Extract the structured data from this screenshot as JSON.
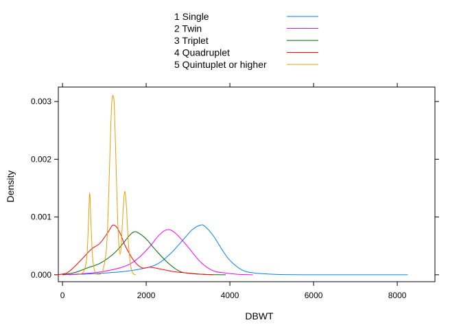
{
  "chart_data": {
    "type": "line",
    "xlabel": "DBWT",
    "ylabel": "Density",
    "xlim": [
      -100,
      8900
    ],
    "ylim": [
      -0.00012,
      0.00325
    ],
    "x_ticks": [
      {
        "value": 0,
        "label": "0"
      },
      {
        "value": 2000,
        "label": "2000"
      },
      {
        "value": 4000,
        "label": "4000"
      },
      {
        "value": 6000,
        "label": "6000"
      },
      {
        "value": 8000,
        "label": "8000"
      }
    ],
    "y_ticks": [
      {
        "value": 0,
        "label": "0.000"
      },
      {
        "value": 0.001,
        "label": "0.001"
      },
      {
        "value": 0.002,
        "label": "0.002"
      },
      {
        "value": 0.003,
        "label": "0.003"
      }
    ],
    "legend_position": "top",
    "series": [
      {
        "name": "1 Single",
        "color": "#0080ff",
        "x": [
          150,
          500,
          1000,
          1500,
          2000,
          2300,
          2600,
          2900,
          3100,
          3300,
          3400,
          3600,
          3800,
          4000,
          4300,
          4600,
          5000,
          5300,
          5800,
          6500,
          7500,
          8250
        ],
        "y": [
          0,
          1e-05,
          3e-05,
          6e-05,
          0.00012,
          0.0002,
          0.00038,
          0.00062,
          0.00078,
          0.00086,
          0.00084,
          0.00068,
          0.00045,
          0.00025,
          8e-05,
          3e-05,
          1e-05,
          3e-06,
          0,
          0,
          0,
          0
        ]
      },
      {
        "name": "2 Twin",
        "color": "#ff00ff",
        "x": [
          0,
          500,
          1000,
          1500,
          1800,
          2100,
          2300,
          2500,
          2700,
          3000,
          3300,
          3600,
          3900,
          4200,
          4550
        ],
        "y": [
          0,
          2e-05,
          6e-05,
          0.00015,
          0.00028,
          0.0005,
          0.00068,
          0.00078,
          0.00072,
          0.00048,
          0.00022,
          7e-05,
          3e-05,
          8e-06,
          0
        ]
      },
      {
        "name": "3 Triplet",
        "color": "#006400",
        "x": [
          0,
          300,
          600,
          900,
          1200,
          1400,
          1600,
          1700,
          1800,
          2000,
          2200,
          2500,
          2800,
          3100,
          3500,
          3900
        ],
        "y": [
          0,
          4e-05,
          0.00012,
          0.0002,
          0.00035,
          0.0005,
          0.00068,
          0.00074,
          0.00073,
          0.00062,
          0.00045,
          0.00022,
          6e-05,
          2e-05,
          5e-06,
          0
        ]
      },
      {
        "name": "4 Quadruplet",
        "color": "#ff0000",
        "x": [
          -150,
          100,
          300,
          500,
          700,
          900,
          1100,
          1200,
          1300,
          1400,
          1500,
          1700,
          1900,
          2100,
          2400,
          2700,
          3000,
          3300,
          3600
        ],
        "y": [
          0,
          3e-05,
          0.00015,
          0.0003,
          0.00045,
          0.00055,
          0.00075,
          0.00086,
          0.00082,
          0.00068,
          0.0005,
          0.00025,
          0.00012,
          0.00013,
          9e-05,
          5e-05,
          3e-05,
          1e-05,
          0
        ]
      },
      {
        "name": "5 Quintuplet or higher",
        "color": "#e6a000",
        "x": [
          350,
          500,
          580,
          620,
          650,
          680,
          720,
          780,
          850,
          950,
          1050,
          1100,
          1150,
          1180,
          1210,
          1240,
          1280,
          1330,
          1380,
          1420,
          1470,
          1500,
          1530,
          1570,
          1620,
          1680,
          1750
        ],
        "y": [
          0,
          5e-05,
          0.0003,
          0.0009,
          0.00142,
          0.0009,
          0.0003,
          4e-05,
          1e-05,
          4e-05,
          0.00045,
          0.0013,
          0.0025,
          0.003,
          0.0031,
          0.0029,
          0.0019,
          0.00075,
          0.00035,
          0.00075,
          0.00135,
          0.00142,
          0.00115,
          0.0006,
          0.0002,
          3e-05,
          0
        ]
      }
    ]
  }
}
